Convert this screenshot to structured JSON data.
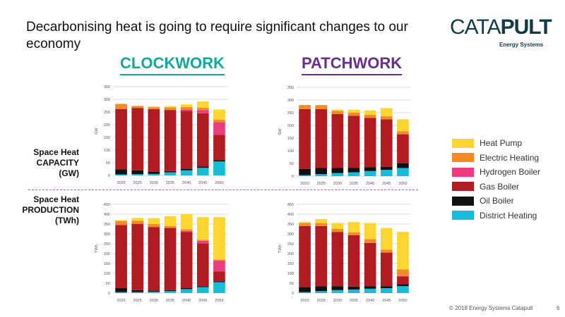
{
  "slide": {
    "title": "Decarbonising heat is going to require significant changes to our economy",
    "page_number": "6",
    "footer": "© 2018 Energy Systems Catapult"
  },
  "logo": {
    "main_left": "CATA",
    "main_right": "PULT",
    "subtitle": "Energy Systems"
  },
  "scenarios": {
    "clockwork": {
      "label": "CLOCKWORK",
      "color": "#12a89a"
    },
    "patchwork": {
      "label": "PATCHWORK",
      "color": "#6c2d91"
    }
  },
  "row_labels": {
    "capacity": "Space Heat\nCAPACITY\n(GW)",
    "production": "Space Heat\nPRODUCTION\n(TWh)"
  },
  "legend": [
    {
      "key": "heat_pump",
      "label": "Heat Pump",
      "color": "#fcd630"
    },
    {
      "key": "electric",
      "label": "Electric Heating",
      "color": "#f28a2a"
    },
    {
      "key": "hydrogen",
      "label": "Hydrogen Boiler",
      "color": "#ec3e7e"
    },
    {
      "key": "gas",
      "label": "Gas Boiler",
      "color": "#b01c22"
    },
    {
      "key": "oil",
      "label": "Oil Boiler",
      "color": "#111111"
    },
    {
      "key": "district",
      "label": "District Heating",
      "color": "#16bcd8"
    }
  ],
  "chart_data": [
    {
      "id": "clockwork-capacity",
      "type": "bar",
      "stacked": true,
      "ylabel": "GW",
      "ylim": [
        0,
        350
      ],
      "yticks": [
        0,
        50,
        100,
        150,
        200,
        250,
        300,
        350
      ],
      "categories": [
        "2020",
        "2025",
        "2030",
        "2035",
        "2040",
        "2045",
        "2050"
      ],
      "series": [
        {
          "name": "District Heating",
          "values": [
            4,
            5,
            6,
            12,
            20,
            30,
            55
          ]
        },
        {
          "name": "Oil Boiler",
          "values": [
            20,
            15,
            8,
            5,
            5,
            5,
            5
          ]
        },
        {
          "name": "Gas Boiler",
          "values": [
            238,
            246,
            247,
            241,
            230,
            210,
            100
          ]
        },
        {
          "name": "Hydrogen Boiler",
          "values": [
            0,
            0,
            0,
            0,
            5,
            12,
            50
          ]
        },
        {
          "name": "Electric Heating",
          "values": [
            20,
            8,
            8,
            10,
            10,
            10,
            10
          ]
        },
        {
          "name": "Heat Pump",
          "values": [
            0,
            0,
            3,
            5,
            10,
            25,
            40
          ]
        }
      ]
    },
    {
      "id": "patchwork-capacity",
      "type": "bar",
      "stacked": true,
      "ylabel": "GW",
      "ylim": [
        0,
        350
      ],
      "yticks": [
        0,
        50,
        100,
        150,
        200,
        250,
        300,
        350
      ],
      "categories": [
        "2020",
        "2025",
        "2030",
        "2035",
        "2040",
        "2045",
        "2050"
      ],
      "series": [
        {
          "name": "District Heating",
          "values": [
            4,
            8,
            12,
            15,
            20,
            25,
            32
          ]
        },
        {
          "name": "Oil Boiler",
          "values": [
            24,
            24,
            20,
            18,
            15,
            12,
            18
          ]
        },
        {
          "name": "Gas Boiler",
          "values": [
            236,
            232,
            213,
            205,
            195,
            187,
            115
          ]
        },
        {
          "name": "Hydrogen Boiler",
          "values": [
            0,
            0,
            0,
            0,
            0,
            0,
            0
          ]
        },
        {
          "name": "Electric Heating",
          "values": [
            16,
            16,
            12,
            12,
            12,
            12,
            12
          ]
        },
        {
          "name": "Heat Pump",
          "values": [
            0,
            0,
            5,
            12,
            17,
            32,
            47
          ]
        }
      ]
    },
    {
      "id": "clockwork-production",
      "type": "bar",
      "stacked": true,
      "ylabel": "TWh",
      "ylim": [
        0,
        450
      ],
      "yticks": [
        0,
        50,
        100,
        150,
        200,
        250,
        300,
        350,
        400,
        450
      ],
      "categories": [
        "2020",
        "2025",
        "2030",
        "2035",
        "2040",
        "2045",
        "2050"
      ],
      "series": [
        {
          "name": "District Heating",
          "values": [
            5,
            5,
            7,
            10,
            20,
            30,
            55
          ]
        },
        {
          "name": "Oil Boiler",
          "values": [
            20,
            10,
            5,
            5,
            5,
            5,
            5
          ]
        },
        {
          "name": "Gas Boiler",
          "values": [
            320,
            336,
            323,
            315,
            285,
            215,
            50
          ]
        },
        {
          "name": "Hydrogen Boiler",
          "values": [
            0,
            0,
            0,
            0,
            5,
            15,
            55
          ]
        },
        {
          "name": "Electric Heating",
          "values": [
            20,
            15,
            15,
            10,
            8,
            5,
            5
          ]
        },
        {
          "name": "Heat Pump",
          "values": [
            5,
            15,
            30,
            50,
            77,
            115,
            215
          ]
        }
      ]
    },
    {
      "id": "patchwork-production",
      "type": "bar",
      "stacked": true,
      "ylabel": "TWh",
      "ylim": [
        0,
        450
      ],
      "yticks": [
        0,
        50,
        100,
        150,
        200,
        250,
        300,
        350,
        400,
        450
      ],
      "categories": [
        "2020",
        "2025",
        "2030",
        "2035",
        "2040",
        "2045",
        "2050"
      ],
      "series": [
        {
          "name": "District Heating",
          "values": [
            5,
            10,
            15,
            18,
            22,
            25,
            35
          ]
        },
        {
          "name": "Oil Boiler",
          "values": [
            25,
            25,
            20,
            15,
            12,
            10,
            10
          ]
        },
        {
          "name": "Gas Boiler",
          "values": [
            310,
            305,
            275,
            260,
            220,
            170,
            40
          ]
        },
        {
          "name": "Hydrogen Boiler",
          "values": [
            0,
            0,
            0,
            0,
            0,
            0,
            0
          ]
        },
        {
          "name": "Electric Heating",
          "values": [
            15,
            15,
            15,
            15,
            20,
            15,
            35
          ]
        },
        {
          "name": "Heat Pump",
          "values": [
            5,
            20,
            30,
            52,
            81,
            110,
            190
          ]
        }
      ]
    }
  ]
}
